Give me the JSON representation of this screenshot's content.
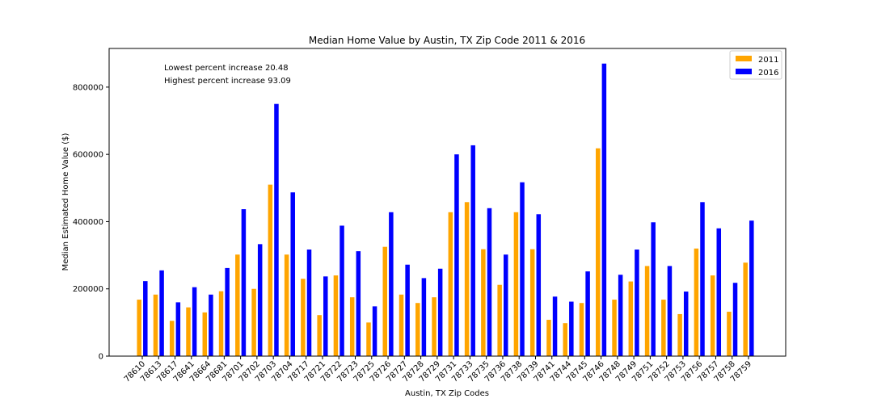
{
  "chart_data": {
    "type": "bar",
    "title": "Median Home Value by Austin, TX Zip Code 2011 & 2016",
    "xlabel": "Austin, TX Zip Codes",
    "ylabel": "Median Estimated Home Value ($)",
    "ylim": [
      0,
      915000
    ],
    "yticks": [
      0,
      200000,
      400000,
      600000,
      800000
    ],
    "grid": false,
    "legend_position": "top-right",
    "annotations": [
      "Lowest percent increase 20.48",
      "Highest percent increase 93.09"
    ],
    "categories": [
      "78610",
      "78613",
      "78617",
      "78641",
      "78664",
      "78681",
      "78701",
      "78702",
      "78703",
      "78704",
      "78717",
      "78721",
      "78722",
      "78723",
      "78725",
      "78726",
      "78727",
      "78728",
      "78729",
      "78731",
      "78733",
      "78735",
      "78736",
      "78738",
      "78739",
      "78741",
      "78744",
      "78745",
      "78746",
      "78748",
      "78749",
      "78751",
      "78752",
      "78753",
      "78756",
      "78757",
      "78758",
      "78759"
    ],
    "series": [
      {
        "name": "2011",
        "color": "#ffa500",
        "values": [
          168000,
          183000,
          105000,
          145000,
          130000,
          193000,
          302000,
          200000,
          510000,
          302000,
          230000,
          122000,
          240000,
          175000,
          100000,
          325000,
          183000,
          158000,
          175000,
          428000,
          458000,
          318000,
          212000,
          428000,
          318000,
          108000,
          98000,
          158000,
          618000,
          168000,
          222000,
          268000,
          168000,
          125000,
          320000,
          240000,
          132000,
          278000
        ]
      },
      {
        "name": "2016",
        "color": "#0000ff",
        "values": [
          223000,
          255000,
          160000,
          205000,
          183000,
          262000,
          437000,
          333000,
          750000,
          487000,
          317000,
          237000,
          388000,
          312000,
          148000,
          428000,
          272000,
          232000,
          260000,
          600000,
          627000,
          440000,
          302000,
          517000,
          422000,
          177000,
          162000,
          252000,
          870000,
          242000,
          317000,
          398000,
          268000,
          192000,
          458000,
          380000,
          218000,
          403000
        ]
      }
    ]
  }
}
